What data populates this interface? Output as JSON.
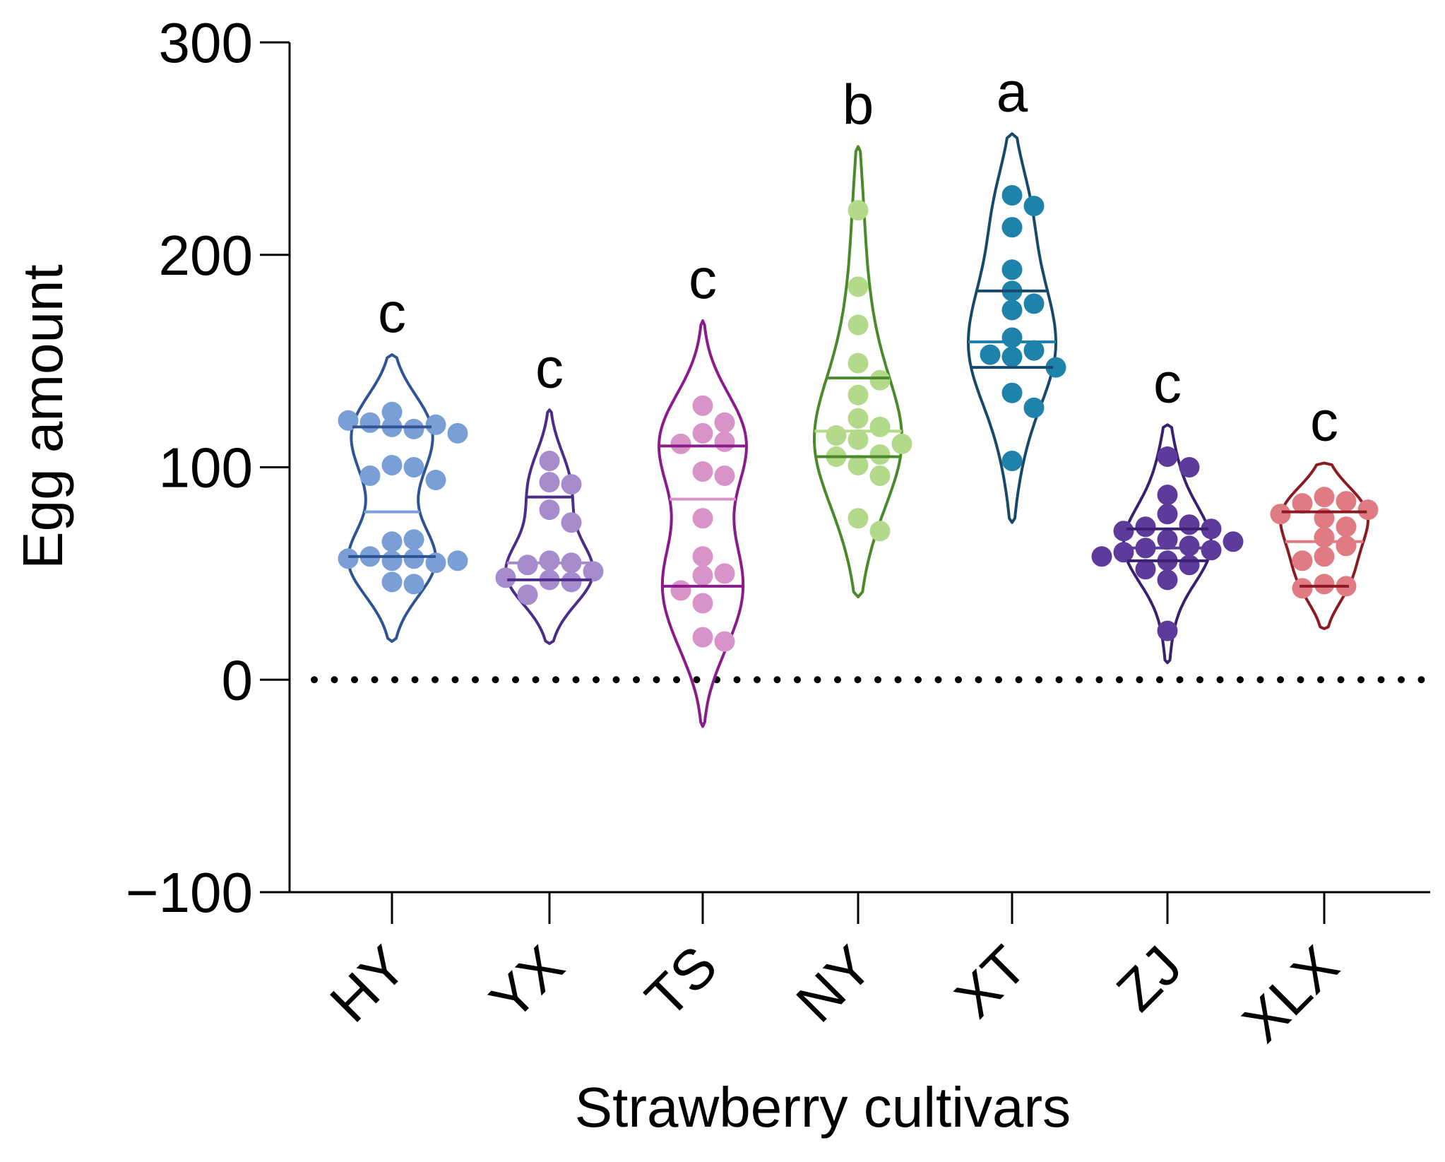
{
  "chart_data": {
    "type": "violin",
    "xlabel": "Strawberry cultivars",
    "ylabel": "Egg amount",
    "ylim": [
      -100,
      300
    ],
    "yticks": [
      -100,
      0,
      100,
      200,
      300
    ],
    "ytick_labels": [
      "−100",
      "0",
      "100",
      "200",
      "300"
    ],
    "reference_line": {
      "y": 0,
      "style": "dotted"
    },
    "categories": [
      "HY",
      "YX",
      "TS",
      "NY",
      "XT",
      "ZJ",
      "XLX"
    ],
    "series": [
      {
        "name": "HY",
        "letter": "c",
        "color": "#2f5496",
        "point_color": "#7a9fd6",
        "min": 18,
        "max": 153,
        "median": 79,
        "q1": 58,
        "q3": 119,
        "points": [
          126,
          118,
          121,
          120,
          122,
          119,
          116,
          101,
          100,
          96,
          94,
          65,
          66,
          58,
          57,
          56,
          55,
          57,
          56,
          46,
          45
        ]
      },
      {
        "name": "YX",
        "letter": "c",
        "color": "#4b2c8a",
        "point_color": "#a68ccd",
        "min": 17,
        "max": 127,
        "median": 55,
        "q1": 47,
        "q3": 86,
        "points": [
          103,
          93,
          92,
          80,
          74,
          56,
          55,
          54,
          51,
          48,
          47,
          46,
          40
        ]
      },
      {
        "name": "TS",
        "letter": "c",
        "color": "#8b1a8b",
        "point_color": "#d893c8",
        "min": -22,
        "max": 169,
        "median": 85,
        "q1": 44,
        "q3": 110,
        "points": [
          129,
          121,
          116,
          112,
          111,
          98,
          96,
          76,
          58,
          50,
          49,
          42,
          36,
          20,
          18
        ]
      },
      {
        "name": "NY",
        "letter": "b",
        "color": "#4a8a2a",
        "point_color": "#b3d98a",
        "min": 39,
        "max": 251,
        "median": 117,
        "q1": 105,
        "q3": 142,
        "points": [
          221,
          185,
          167,
          149,
          141,
          134,
          123,
          119,
          115,
          113,
          111,
          106,
          105,
          101,
          96,
          76,
          70
        ]
      },
      {
        "name": "XT",
        "letter": "a",
        "color": "#174a6a",
        "point_color": "#1e82aa",
        "min": 74,
        "max": 257,
        "median": 159,
        "q1": 147,
        "q3": 183,
        "points": [
          228,
          223,
          213,
          193,
          183,
          177,
          174,
          161,
          155,
          153,
          152,
          147,
          135,
          128,
          103
        ]
      },
      {
        "name": "ZJ",
        "letter": "c",
        "color": "#3a2070",
        "point_color": "#5e3a9a",
        "min": 8,
        "max": 120,
        "median": 62,
        "q1": 56,
        "q3": 71,
        "points": [
          105,
          100,
          87,
          78,
          73,
          72,
          71,
          70,
          66,
          65,
          63,
          62,
          61,
          60,
          58,
          56,
          54,
          52,
          47,
          23
        ]
      },
      {
        "name": "XLX",
        "letter": "c",
        "color": "#8c1a22",
        "point_color": "#e07b84",
        "min": 24,
        "max": 102,
        "median": 65,
        "q1": 44,
        "q3": 79,
        "points": [
          86,
          84,
          83,
          80,
          78,
          76,
          72,
          67,
          63,
          58,
          56,
          45,
          44,
          43
        ]
      }
    ]
  }
}
